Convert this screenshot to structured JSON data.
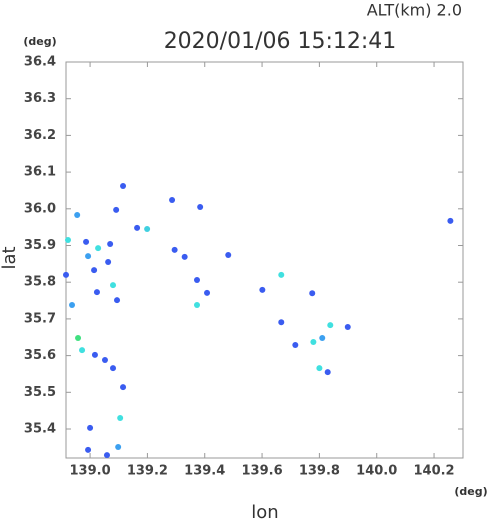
{
  "chart_data": {
    "type": "scatter",
    "title": "2020/01/06 15:12:41",
    "subtitle": "ALT(km) 2.0",
    "x_label": "lon",
    "y_label": "lat",
    "x_unit": "(deg)",
    "y_unit": "(deg)",
    "xlim": [
      138.916,
      140.301
    ],
    "ylim": [
      35.321,
      36.4
    ],
    "xticks": [
      {
        "value": 139.0,
        "label": "139.0"
      },
      139.2,
      139.4,
      139.6,
      139.8,
      {
        "value": 140.0,
        "label": "140.0"
      },
      140.2
    ],
    "yticks": [
      {
        "value": 35.4,
        "label": "35.4"
      },
      35.5,
      35.6,
      35.7,
      35.8,
      35.9,
      {
        "value": 36.0,
        "label": "36.0"
      },
      36.1,
      36.2,
      36.3,
      36.4
    ],
    "x": [
      139.115,
      138.955,
      139.091,
      139.164,
      139.199,
      138.923,
      138.986,
      139.028,
      139.07,
      138.993,
      139.014,
      139.063,
      138.916,
      139.08,
      139.024,
      139.094,
      138.937,
      138.958,
      138.972,
      139.017,
      139.052,
      139.08,
      139.115,
      139.105,
      139.0,
      138.993,
      139.098,
      139.059,
      139.286,
      139.384,
      139.295,
      139.33,
      139.482,
      139.373,
      139.408,
      139.373,
      139.667,
      139.601,
      139.775,
      139.667,
      139.716,
      139.838,
      139.899,
      139.81,
      139.779,
      139.829,
      139.8,
      140.257
    ],
    "y": [
      36.062,
      35.983,
      35.997,
      35.948,
      35.945,
      35.915,
      35.91,
      35.893,
      35.904,
      35.871,
      35.833,
      35.855,
      35.82,
      35.792,
      35.773,
      35.751,
      35.738,
      35.648,
      35.615,
      35.602,
      35.588,
      35.566,
      35.514,
      35.43,
      35.403,
      35.343,
      35.351,
      35.329,
      36.024,
      36.005,
      35.888,
      35.869,
      35.874,
      35.806,
      35.771,
      35.738,
      35.82,
      35.779,
      35.77,
      35.691,
      35.629,
      35.683,
      35.678,
      35.648,
      35.637,
      35.555,
      35.566,
      35.967
    ],
    "colors": [
      "#3a5cf0",
      "#3ca0f0",
      "#3a5cf0",
      "#3a5cf0",
      "#40d0e0",
      "#40e0e0",
      "#3a5cf0",
      "#40e0e0",
      "#3a5cf0",
      "#3ca0f0",
      "#3a5cf0",
      "#3a5cf0",
      "#3a5cf0",
      "#40e0e0",
      "#3a5cf0",
      "#3a5cf0",
      "#3ca0f0",
      "#40e080",
      "#40e0e0",
      "#3a5cf0",
      "#3a5cf0",
      "#3a5cf0",
      "#3a5cf0",
      "#40e0e0",
      "#3a5cf0",
      "#3a5cf0",
      "#3ca0f0",
      "#3a5cf0",
      "#3a5cf0",
      "#3a5cf0",
      "#3a5cf0",
      "#3a5cf0",
      "#3a5cf0",
      "#3a5cf0",
      "#3a5cf0",
      "#40e0e0",
      "#40e0e0",
      "#3a5cf0",
      "#3a5cf0",
      "#3a5cf0",
      "#3a5cf0",
      "#40e0e0",
      "#3a5cf0",
      "#3ca0f0",
      "#40e0e0",
      "#3a5cf0",
      "#40e0e0",
      "#3a5cf0"
    ]
  }
}
